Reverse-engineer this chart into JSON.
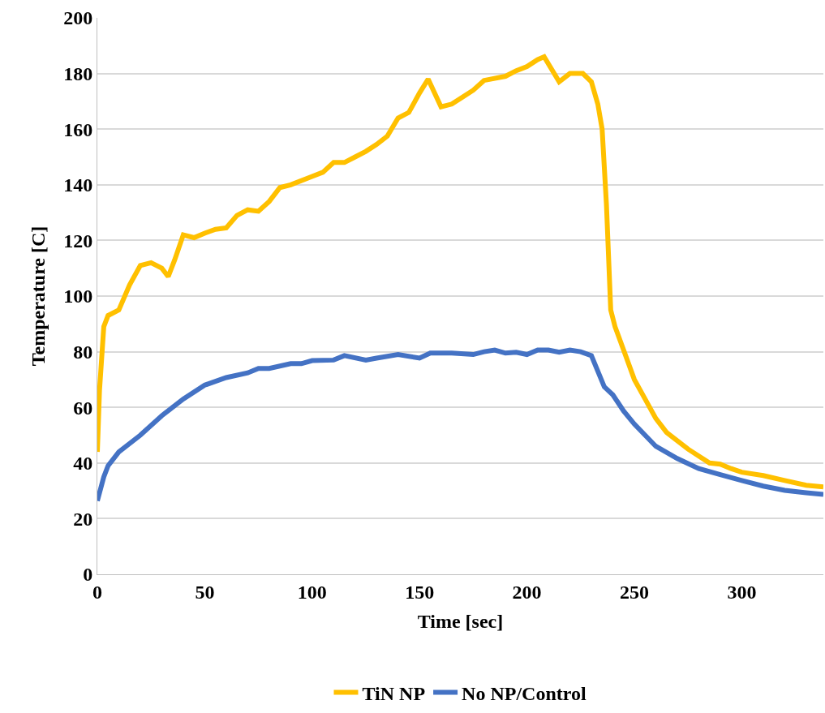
{
  "chart_data": {
    "type": "line",
    "xlabel": "Time [sec]",
    "ylabel": "Temperature [C]",
    "xlim": [
      0,
      338
    ],
    "xticks": [
      0,
      50,
      100,
      150,
      200,
      250,
      300
    ],
    "ylim": [
      0,
      200
    ],
    "yticks": [
      0,
      20,
      40,
      60,
      80,
      100,
      120,
      140,
      160,
      180,
      200
    ],
    "grid": "y",
    "legend": "bottom",
    "marker": "none",
    "line_style": "solid",
    "series": [
      {
        "name": "TiN NP",
        "color": "#ffc000",
        "x": [
          0,
          1,
          3,
          5,
          10,
          15,
          20,
          25,
          30,
          33,
          36,
          40,
          45,
          50,
          55,
          60,
          65,
          70,
          75,
          80,
          85,
          90,
          100,
          105,
          110,
          115,
          120,
          125,
          130,
          135,
          140,
          145,
          150,
          154,
          160,
          165,
          170,
          175,
          180,
          190,
          195,
          200,
          205,
          208,
          215,
          220,
          226,
          230,
          233,
          235,
          237,
          239,
          241,
          245,
          250,
          255,
          260,
          265,
          270,
          275,
          280,
          285,
          290,
          295,
          300,
          310,
          320,
          330,
          338
        ],
        "values": [
          44,
          66,
          89,
          93,
          95,
          104,
          111,
          112,
          110,
          107,
          113,
          122,
          121,
          122.6,
          124,
          124.5,
          129,
          131,
          130.5,
          134,
          139,
          140,
          143,
          144.5,
          148,
          148,
          150,
          152,
          154.5,
          157.5,
          164,
          166,
          173,
          178,
          168,
          169,
          171.5,
          174,
          177.5,
          179,
          181,
          182.5,
          185,
          186,
          177,
          180,
          180,
          177,
          169,
          160,
          133,
          95,
          89,
          80.6,
          70,
          63,
          56,
          51,
          48,
          45,
          42.5,
          40,
          39.6,
          38,
          36.7,
          35.5,
          33.7,
          32,
          31.4
        ]
      },
      {
        "name": "No NP/Control",
        "color": "#4472c4",
        "x": [
          0,
          3,
          5,
          10,
          20,
          30,
          40,
          50,
          60,
          70,
          75,
          80,
          90,
          95,
          100,
          110,
          115,
          125,
          130,
          140,
          150,
          155,
          165,
          175,
          180,
          185,
          190,
          195,
          200,
          205,
          210,
          215,
          220,
          225,
          230,
          233,
          236,
          240,
          245,
          250,
          255,
          260,
          270,
          280,
          290,
          300,
          310,
          320,
          330,
          338
        ],
        "values": [
          26.4,
          35,
          39,
          44,
          50,
          57,
          63,
          68,
          70.7,
          72.4,
          74,
          74,
          75.7,
          75.7,
          76.8,
          77,
          78.6,
          77,
          77.7,
          79,
          77.7,
          79.5,
          79.5,
          79,
          80,
          80.6,
          79.5,
          79.8,
          79,
          80.6,
          80.6,
          79.8,
          80.6,
          80,
          78.6,
          73,
          67.4,
          64.5,
          58.7,
          54,
          50,
          46,
          41.6,
          38,
          35.8,
          33.7,
          31.7,
          30.2,
          29.3,
          28.7
        ]
      }
    ]
  }
}
